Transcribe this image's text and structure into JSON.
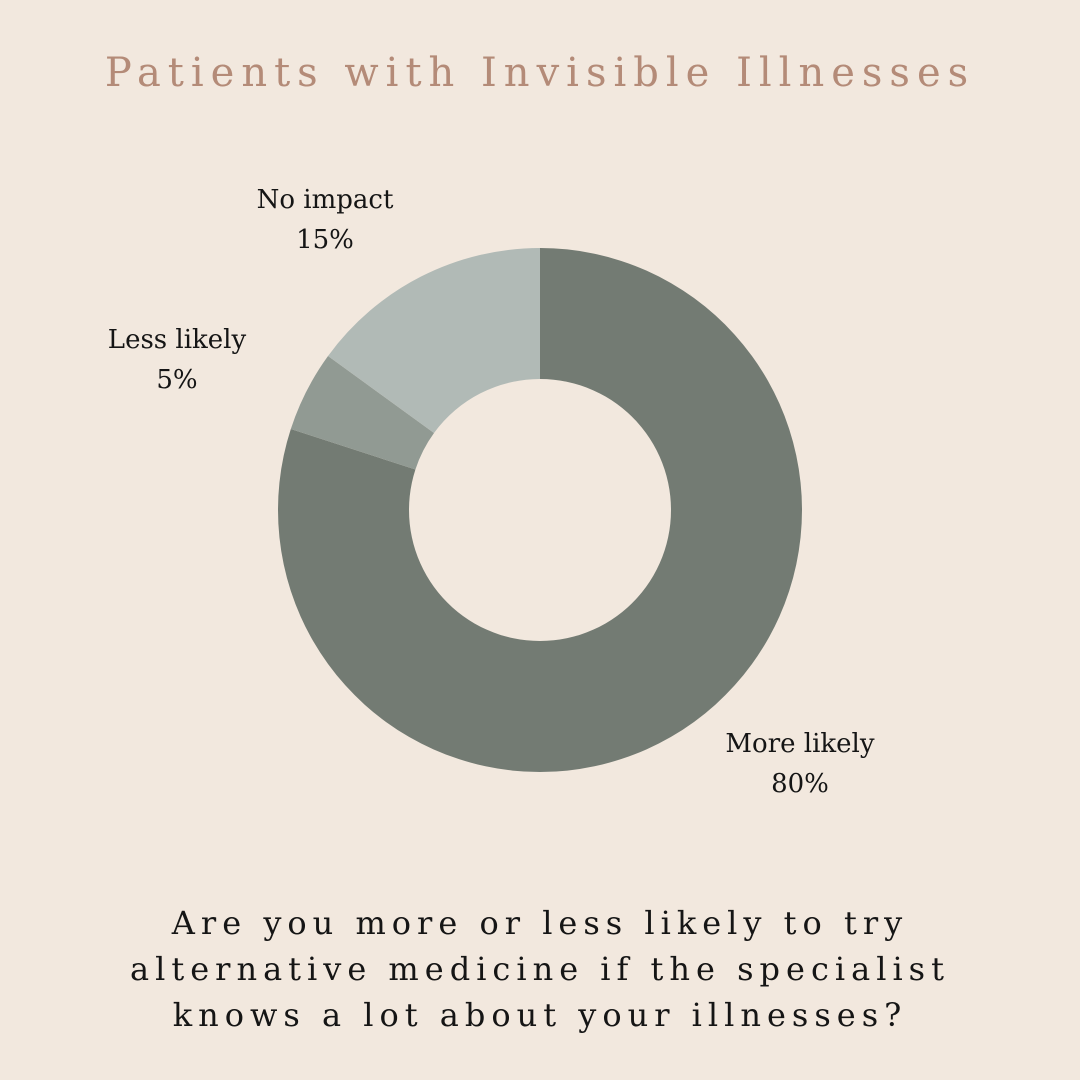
{
  "colors": {
    "background": "#f2e8de",
    "title": "#b48b78",
    "text": "#151515",
    "more_likely": "#737b73",
    "less_likely": "#919a93",
    "no_impact": "#b1bab6"
  },
  "chart_data": {
    "type": "pie",
    "variant": "donut",
    "title": "Patients with Invisible Illnesses",
    "unit": "%",
    "slices": [
      {
        "label": "More likely",
        "value": 80,
        "value_label": "80%",
        "color": "#737b73"
      },
      {
        "label": "Less likely",
        "value": 5,
        "value_label": "5%",
        "color": "#919a93"
      },
      {
        "label": "No impact",
        "value": 15,
        "value_label": "15%",
        "color": "#b1bab6"
      }
    ],
    "start": "12 o'clock",
    "direction": "clockwise",
    "legend": "none",
    "labels_position": "outside"
  },
  "question": {
    "lines": [
      "Are you more or less likely to try",
      "alternative medicine if the specialist",
      "knows a lot about your illnesses?"
    ]
  }
}
